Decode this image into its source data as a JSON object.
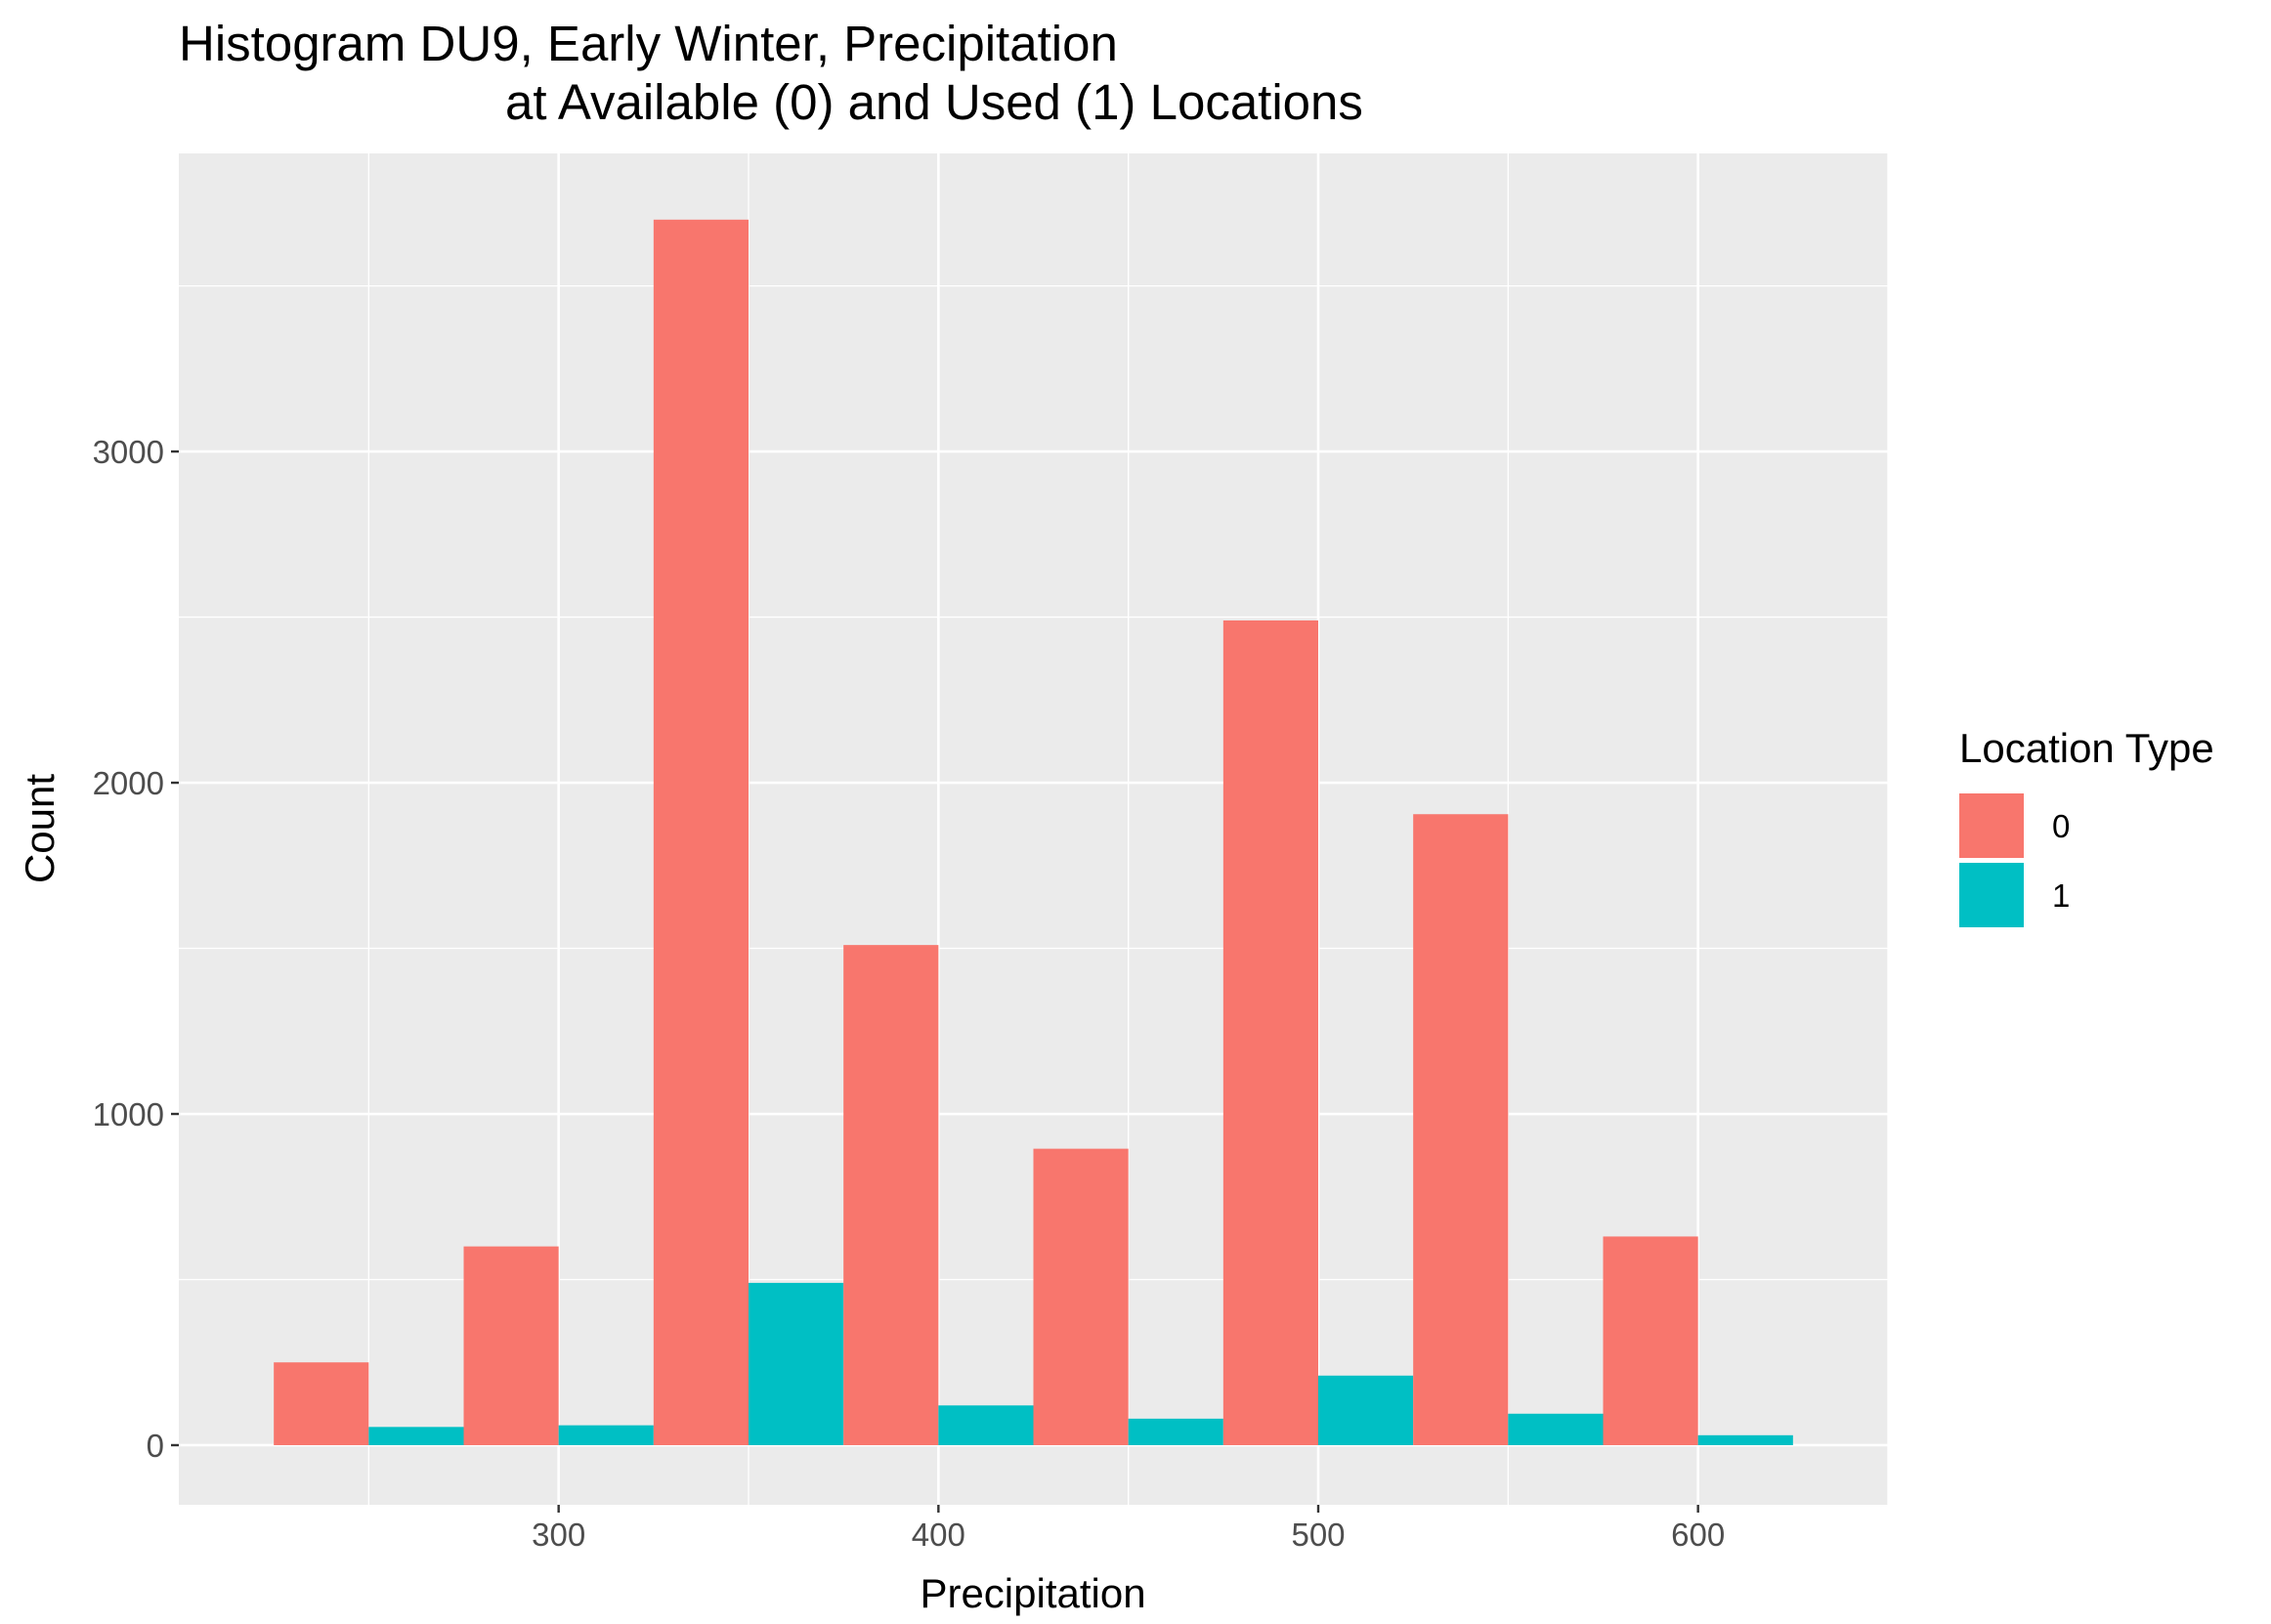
{
  "chart_data": {
    "type": "bar",
    "title_lines": [
      "Histogram DU9, Early Winter, Precipitation",
      "at Available (0) and Used (1) Locations"
    ],
    "xlabel": "Precipitation",
    "ylabel": "Count",
    "xlim": [
      200,
      650
    ],
    "ylim": [
      -180,
      3900
    ],
    "x_ticks": [
      300,
      400,
      500,
      600
    ],
    "y_ticks": [
      0,
      1000,
      2000,
      3000
    ],
    "grid": true,
    "bin_centers": [
      250,
      300,
      350,
      400,
      450,
      500,
      550,
      600
    ],
    "series": [
      {
        "name": "0",
        "color": "#F8766D",
        "values": [
          250,
          600,
          3700,
          1510,
          895,
          2490,
          1905,
          630
        ]
      },
      {
        "name": "1",
        "color": "#00BFC4",
        "values": [
          55,
          60,
          490,
          120,
          80,
          210,
          95,
          30
        ]
      }
    ],
    "legend": {
      "title": "Location Type",
      "placement": "right"
    }
  }
}
